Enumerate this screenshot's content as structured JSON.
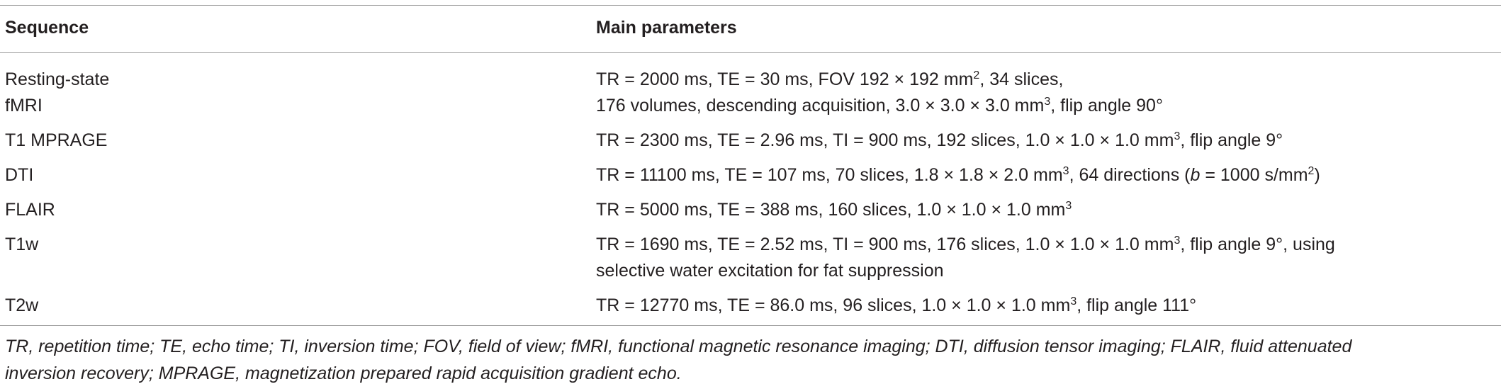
{
  "table": {
    "header": [
      "Sequence",
      "Main parameters"
    ],
    "rows": [
      {
        "sequence": [
          "Resting-state",
          "fMRI"
        ],
        "parameters": [
          [
            "TR = 2000 ms, TE = 30 ms, FOV 192 × 192 mm",
            {
              "sup": "2"
            },
            ", 34 slices,"
          ],
          [
            "176 volumes, descending acquisition, 3.0 × 3.0 × 3.0 mm",
            {
              "sup": "3"
            },
            ", flip angle 90°"
          ]
        ]
      },
      {
        "sequence": [
          "T1 MPRAGE"
        ],
        "parameters": [
          [
            "TR = 2300 ms, TE = 2.96 ms, TI = 900 ms, 192 slices, 1.0 × 1.0 × 1.0 mm",
            {
              "sup": "3"
            },
            ", flip angle 9°"
          ]
        ]
      },
      {
        "sequence": [
          "DTI"
        ],
        "parameters": [
          [
            "TR = 11100 ms, TE = 107 ms, 70 slices, 1.8 × 1.8 × 2.0 mm",
            {
              "sup": "3"
            },
            ", 64 directions (",
            {
              "i": "b"
            },
            " = 1000 s/mm",
            {
              "sup": "2"
            },
            ")"
          ]
        ]
      },
      {
        "sequence": [
          "FLAIR"
        ],
        "parameters": [
          [
            "TR = 5000 ms, TE = 388 ms, 160 slices, 1.0 × 1.0 × 1.0 mm",
            {
              "sup": "3"
            }
          ]
        ]
      },
      {
        "sequence": [
          "T1w"
        ],
        "parameters": [
          [
            "TR = 1690 ms, TE = 2.52 ms, TI = 900 ms, 176 slices, 1.0 × 1.0 × 1.0 mm",
            {
              "sup": "3"
            },
            ", flip angle 9°, using"
          ],
          [
            "selective water excitation for fat suppression"
          ]
        ]
      },
      {
        "sequence": [
          "T2w"
        ],
        "parameters": [
          [
            "TR = 12770 ms, TE = 86.0 ms, 96 slices, 1.0 × 1.0 × 1.0 mm",
            {
              "sup": "3"
            },
            ", flip angle 111°"
          ]
        ]
      }
    ],
    "footnote": [
      "TR, repetition time; TE, echo time; TI, inversion time; FOV, field of view; fMRI, functional magnetic resonance imaging; DTI, diffusion tensor imaging; FLAIR, fluid attenuated",
      "inversion recovery; MPRAGE, magnetization prepared rapid acquisition gradient echo."
    ]
  }
}
